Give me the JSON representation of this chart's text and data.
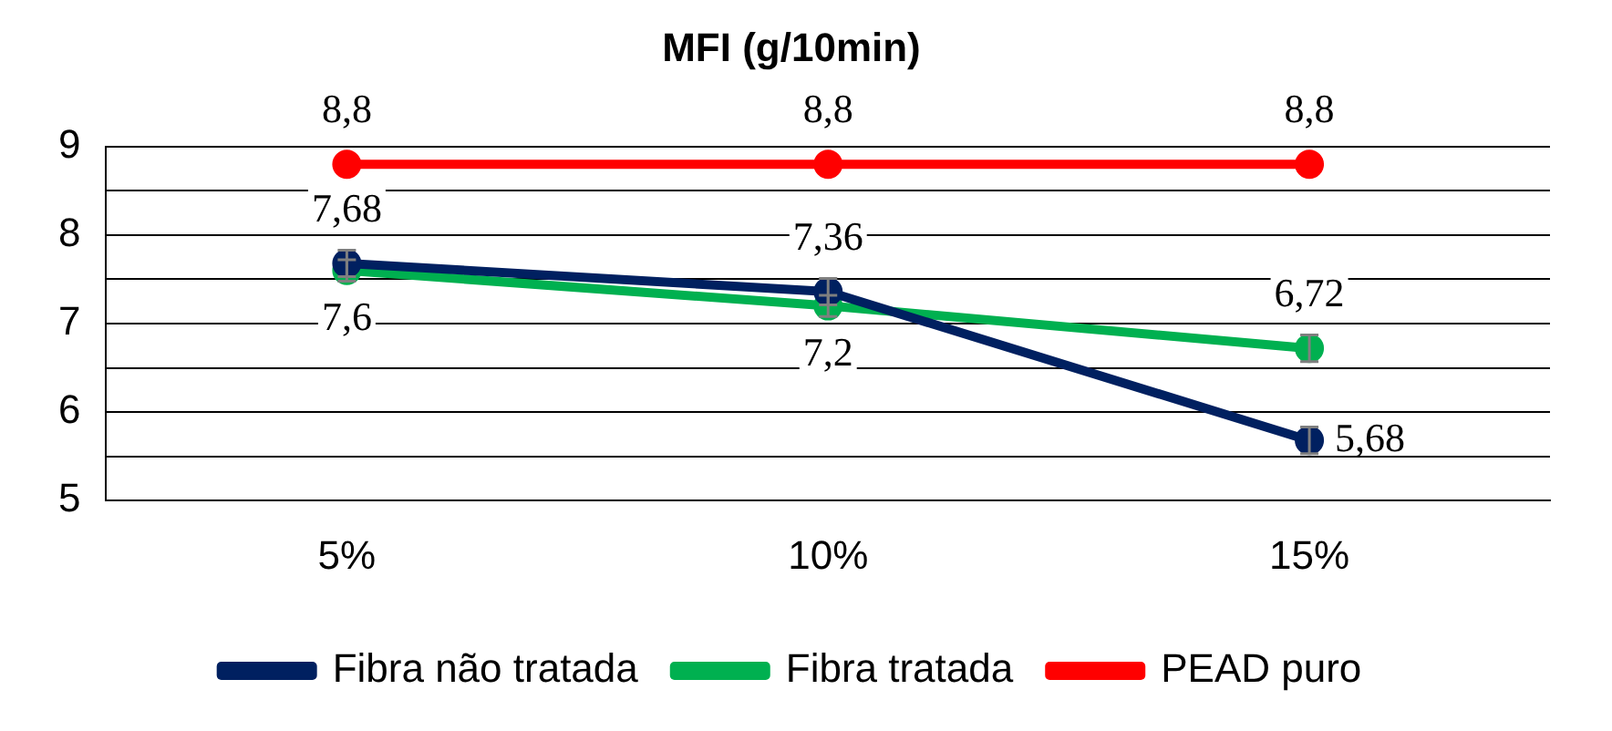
{
  "chart_data": {
    "type": "line",
    "title": "MFI (g/10min)",
    "categories": [
      "5%",
      "10%",
      "15%"
    ],
    "series": [
      {
        "name": "Fibra não tratada",
        "color": "#002060",
        "values": [
          7.68,
          7.36,
          5.68
        ],
        "errors": [
          0.15,
          0.15,
          0.15
        ],
        "value_labels": [
          "7,68",
          "7,36",
          "5,68"
        ]
      },
      {
        "name": "Fibra tratada",
        "color": "#00b050",
        "values": [
          7.6,
          7.2,
          6.72
        ],
        "errors": [
          0.12,
          0.12,
          0.15
        ],
        "value_labels": [
          "7,6",
          "7,2",
          "6,72"
        ]
      },
      {
        "name": "PEAD puro",
        "color": "#ff0000",
        "values": [
          8.8,
          8.8,
          8.8
        ],
        "value_labels": [
          "8,8",
          "8,8",
          "8,8"
        ]
      }
    ],
    "ylim": [
      5,
      9
    ],
    "yticks": [
      5,
      {
        "value": 5.5,
        "label": null
      },
      6,
      {
        "value": 6.5,
        "label": null
      },
      7,
      {
        "value": 7.5,
        "label": null
      },
      8,
      {
        "value": 8.5,
        "label": null
      },
      9
    ],
    "grid": "y",
    "legend": "bottom",
    "marker": "circle",
    "line_style": "solid"
  }
}
